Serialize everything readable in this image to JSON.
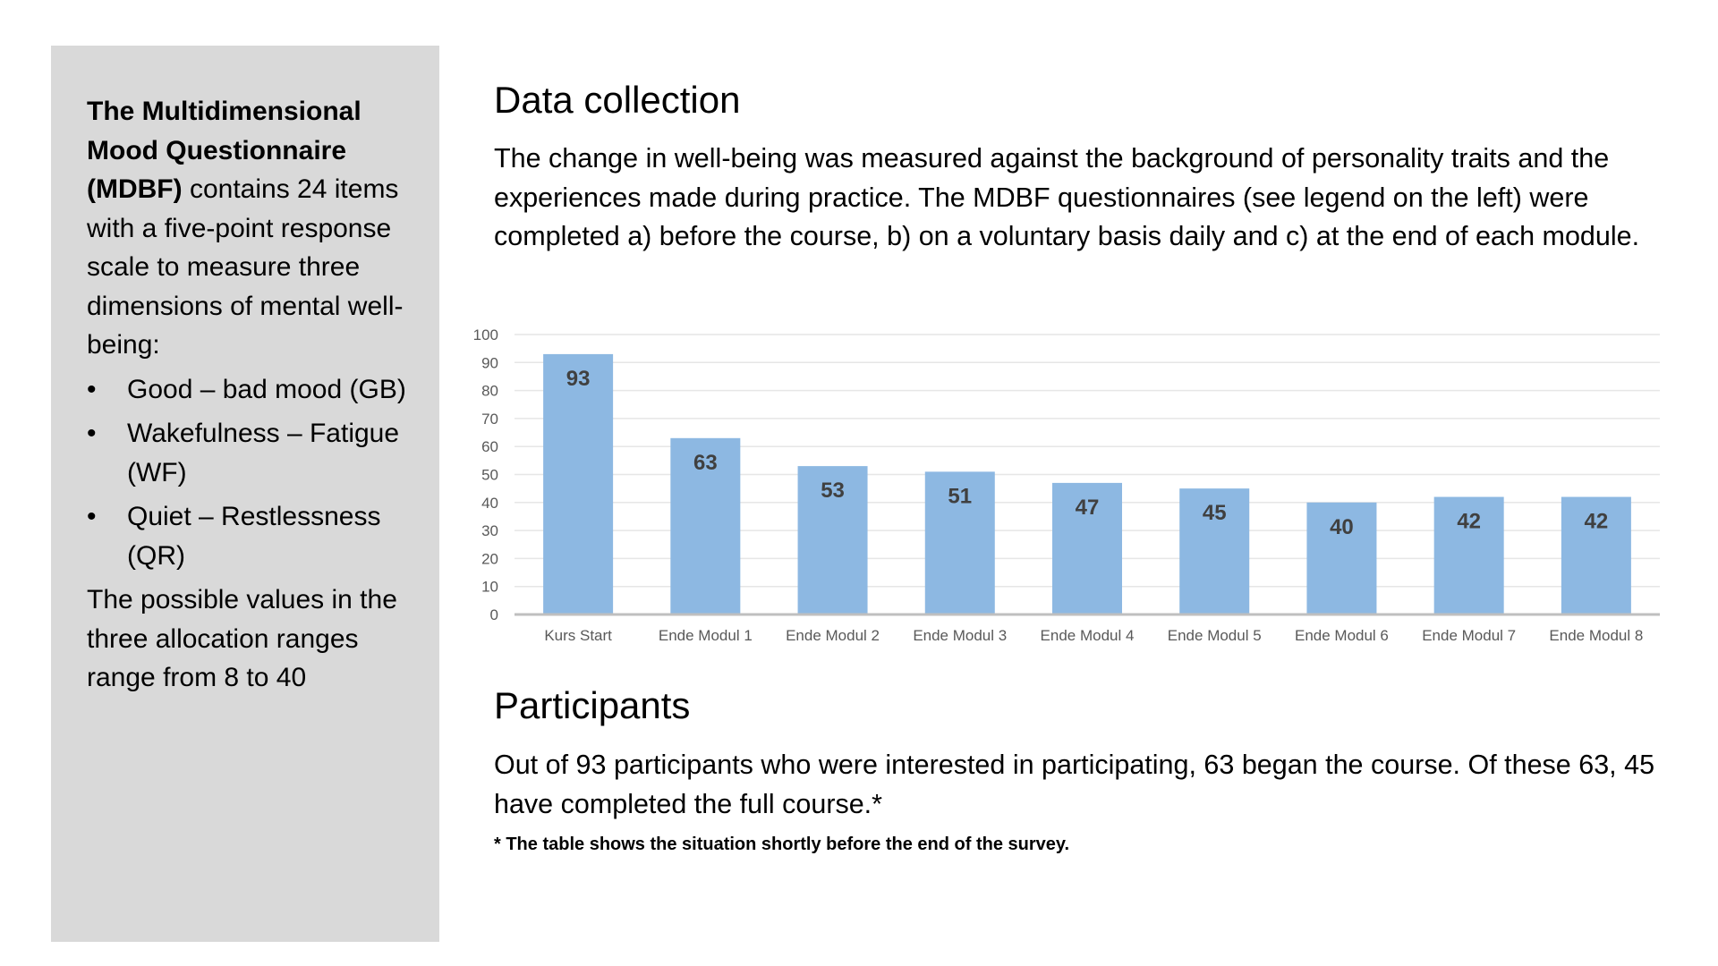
{
  "sidebar": {
    "intro_bold": "The Multidimensional Mood Questionnaire (MDBF)",
    "intro_rest": " contains 24 items with a five-point response scale to measure three dimensions of mental well-being:",
    "items": [
      "Good – bad mood (GB)",
      "Wakefulness – Fatigue (WF)",
      "Quiet – Restlessness (QR)"
    ],
    "outro": "The possible values in the three allocation ranges range from 8 to 40"
  },
  "data_collection": {
    "title": "Data collection",
    "text": "The change in well-being was measured against the background of personality traits and the experiences made during practice. The MDBF questionnaires (see legend on the left) were completed a) before the course, b) on a voluntary basis daily and c) at the end of each module."
  },
  "participants": {
    "title": "Participants",
    "text": "Out of 93 participants who were interested in participating, 63 began the course. Of these 63, 45 have completed the full course.*",
    "footnote": "* The table shows the situation shortly before the end of the survey."
  },
  "chart_data": {
    "type": "bar",
    "categories": [
      "Kurs Start",
      "Ende Modul 1",
      "Ende Modul 2",
      "Ende Modul 3",
      "Ende Modul 4",
      "Ende Modul 5",
      "Ende Modul 6",
      "Ende Modul 7",
      "Ende Modul 8"
    ],
    "values": [
      93,
      63,
      53,
      51,
      47,
      45,
      40,
      42,
      42
    ],
    "ylim": [
      0,
      100
    ],
    "yticks": [
      0,
      10,
      20,
      30,
      40,
      50,
      60,
      70,
      80,
      90,
      100
    ],
    "grid": true,
    "data_labels": true,
    "bar_color": "#8db8e2",
    "title": "",
    "xlabel": "",
    "ylabel": ""
  }
}
